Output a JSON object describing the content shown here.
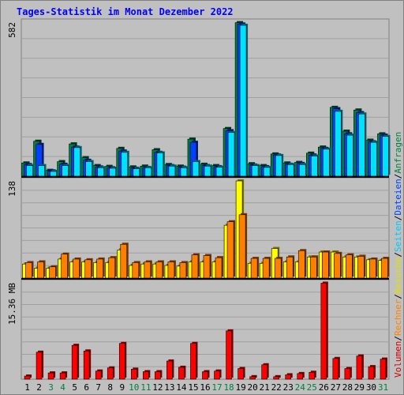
{
  "title": "Tages-Statistik im Monat Dezember 2022",
  "days": [
    "1",
    "2",
    "3",
    "4",
    "5",
    "6",
    "7",
    "8",
    "9",
    "10",
    "11",
    "12",
    "13",
    "14",
    "15",
    "16",
    "17",
    "18",
    "19",
    "20",
    "21",
    "22",
    "23",
    "24",
    "25",
    "26",
    "27",
    "28",
    "29",
    "30",
    "31"
  ],
  "weekend_days": [
    "3",
    "4",
    "10",
    "11",
    "17",
    "18",
    "24",
    "25",
    "31"
  ],
  "colors": {
    "background": "#c0c0c0",
    "title": "#0000ff",
    "axis_text": "#000000",
    "weekend_text": "#008040",
    "anfragen": "#008040",
    "dateien": "#0040ff",
    "seiten": "#00e0ff",
    "besuche": "#ffff00",
    "rechner": "#ff8000",
    "volumen": "#ff0000",
    "separator": "#000000"
  },
  "chart_data": [
    {
      "type": "bar",
      "panel": "top",
      "axis_max_label": "582",
      "ylim": [
        0,
        582
      ],
      "series": [
        {
          "name": "Anfragen",
          "values": [
            50,
            132,
            22,
            55,
            122,
            70,
            40,
            37,
            105,
            35,
            38,
            100,
            44,
            38,
            140,
            45,
            40,
            180,
            580,
            47,
            40,
            84,
            50,
            52,
            87,
            110,
            260,
            170,
            250,
            136,
            160
          ]
        },
        {
          "name": "Dateien",
          "values": [
            44,
            120,
            20,
            45,
            110,
            60,
            35,
            32,
            95,
            30,
            33,
            90,
            40,
            34,
            128,
            40,
            36,
            172,
            575,
            42,
            36,
            80,
            45,
            48,
            80,
            105,
            255,
            160,
            240,
            130,
            155
          ]
        },
        {
          "name": "Seiten",
          "values": [
            40,
            40,
            18,
            40,
            108,
            55,
            32,
            30,
            90,
            28,
            32,
            88,
            38,
            32,
            55,
            38,
            34,
            165,
            570,
            40,
            33,
            78,
            44,
            44,
            76,
            102,
            245,
            155,
            235,
            128,
            150
          ]
        }
      ]
    },
    {
      "type": "bar",
      "panel": "middle",
      "axis_max_label": "138",
      "ylim": [
        0,
        138
      ],
      "series": [
        {
          "name": "Besuche",
          "values": [
            20,
            14,
            14,
            27,
            23,
            23,
            22,
            22,
            40,
            18,
            20,
            20,
            18,
            17,
            23,
            23,
            23,
            75,
            138,
            21,
            21,
            42,
            23,
            23,
            30,
            37,
            37,
            30,
            30,
            26,
            25
          ]
        },
        {
          "name": "Rechner",
          "values": [
            22,
            23,
            16,
            34,
            27,
            26,
            27,
            29,
            48,
            22,
            23,
            23,
            23,
            22,
            33,
            32,
            29,
            80,
            90,
            28,
            28,
            28,
            30,
            39,
            30,
            37,
            35,
            33,
            31,
            27,
            28
          ]
        }
      ]
    },
    {
      "type": "bar",
      "panel": "bottom",
      "axis_max_label": "15.36 MB",
      "ylim": [
        0,
        15.36
      ],
      "series": [
        {
          "name": "Volumen",
          "values": [
            0.5,
            4.3,
            1.0,
            1.0,
            5.4,
            4.5,
            1.3,
            1.8,
            5.7,
            1.6,
            1.2,
            1.2,
            2.9,
            1.9,
            5.7,
            1.2,
            1.3,
            7.7,
            1.7,
            0.4,
            2.3,
            0.4,
            0.7,
            0.9,
            1.1,
            15.3,
            3.3,
            1.7,
            3.7,
            2.0,
            3.2
          ]
        }
      ]
    }
  ],
  "right_legend": [
    {
      "text": "Volumen",
      "color": "#cc0000"
    },
    {
      "text": "/",
      "color": "#000000"
    },
    {
      "text": "Rechner",
      "color": "#ff8000"
    },
    {
      "text": "/",
      "color": "#000000"
    },
    {
      "text": "Besuche",
      "color": "#e0e000"
    },
    {
      "text": "/",
      "color": "#000000"
    },
    {
      "text": "Seiten",
      "color": "#00c8ff"
    },
    {
      "text": "/",
      "color": "#000000"
    },
    {
      "text": "Dateien",
      "color": "#0040ff"
    },
    {
      "text": "/",
      "color": "#000000"
    },
    {
      "text": "Anfragen",
      "color": "#008040"
    }
  ]
}
